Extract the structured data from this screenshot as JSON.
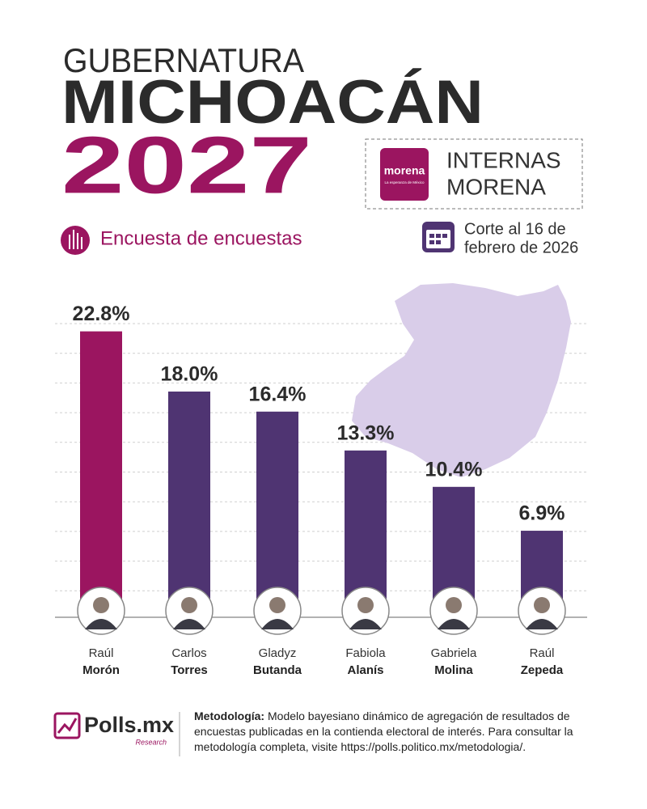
{
  "header": {
    "title_line1": "GUBERNATURA",
    "title_line2": "MICHOACÁN",
    "title_line3": "2027",
    "subtitle": "Encuesta de encuestas",
    "party_logo": "morena",
    "party_slogan": "La esperanza de México",
    "badge_line1": "INTERNAS",
    "badge_line2": "MORENA",
    "cutoff_line1": "Corte al 16 de",
    "cutoff_line2": "febrero de 2026"
  },
  "chart_data": {
    "type": "bar",
    "categories": [
      {
        "first": "Raúl",
        "last": "Morón"
      },
      {
        "first": "Carlos",
        "last": "Torres"
      },
      {
        "first": "Gladyz",
        "last": "Butanda"
      },
      {
        "first": "Fabiola",
        "last": "Alanís"
      },
      {
        "first": "Gabriela",
        "last": "Molina"
      },
      {
        "first": "Raúl",
        "last": "Zepeda"
      }
    ],
    "values": [
      22.8,
      18.0,
      16.4,
      13.3,
      10.4,
      6.9
    ],
    "value_labels": [
      "22.8%",
      "18.0%",
      "16.4%",
      "13.3%",
      "10.4%",
      "6.9%"
    ],
    "colors": [
      "#9b1560",
      "#4f3472",
      "#4f3472",
      "#4f3472",
      "#4f3472",
      "#4f3472"
    ]
  },
  "footer": {
    "brand": "Polls.mx",
    "brand_sub": "Research",
    "method_label": "Metodología:",
    "method_text": "Modelo bayesiano dinámico de agregación de resultados de encuestas publicadas en la contienda electoral de interés. Para consultar la metodología completa, visite https://polls.politico.mx/metodologia/."
  }
}
